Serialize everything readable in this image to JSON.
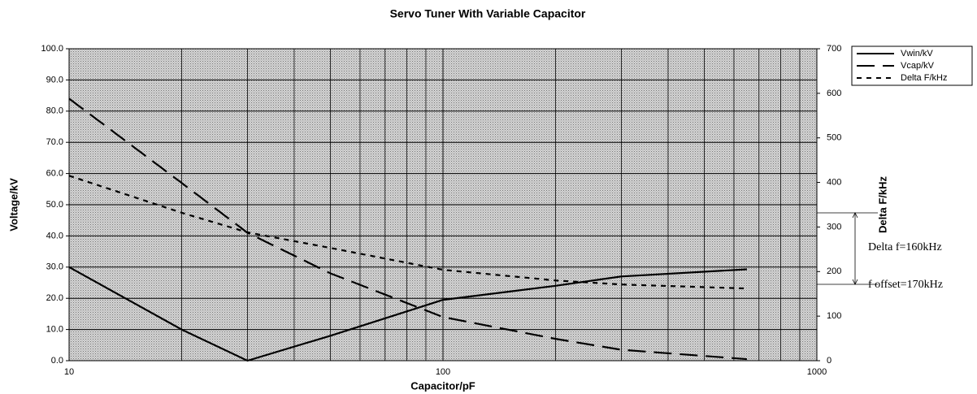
{
  "chart_data": {
    "type": "line",
    "title": "Servo Tuner With Variable Capacitor",
    "xlabel": "Capacitor/pF",
    "ylabel": "Voltage/kV",
    "y2label": "Delta F/kHz",
    "xscale": "log",
    "xlim": [
      10,
      1000
    ],
    "xticks": [
      10,
      100,
      1000
    ],
    "ylim": [
      0,
      100
    ],
    "yticks": [
      {
        "value": 0,
        "label": "0.0"
      },
      {
        "value": 10,
        "label": "10.0"
      },
      {
        "value": 20,
        "label": "20.0"
      },
      {
        "value": 30,
        "label": "30.0"
      },
      {
        "value": 40,
        "label": "40.0"
      },
      {
        "value": 50,
        "label": "50.0"
      },
      {
        "value": 60,
        "label": "60.0"
      },
      {
        "value": 70,
        "label": "70.0"
      },
      {
        "value": 80,
        "label": "80.0"
      },
      {
        "value": 90,
        "label": "90.0"
      },
      {
        "value": 100,
        "label": "100.0"
      }
    ],
    "y2lim": [
      0,
      700
    ],
    "y2ticks": [
      0,
      100,
      200,
      300,
      400,
      500,
      600,
      700
    ],
    "grid": true,
    "minor_grid": true,
    "legend": "outside-top-right",
    "x": [
      10,
      20,
      30,
      50,
      100,
      200,
      300,
      650
    ],
    "series": [
      {
        "name": "Vwin/kV",
        "color": "#000000",
        "dash": "solid",
        "values": [
          30,
          10,
          0,
          8,
          19.5,
          24,
          27,
          29.3
        ]
      },
      {
        "name": "Vcap/kV",
        "color": "#000000",
        "dash": "long",
        "values": [
          84,
          57,
          41,
          28,
          14,
          7,
          3.5,
          0.5
        ]
      },
      {
        "name": "Delta F/kHz",
        "color": "#000000",
        "dash": "short",
        "axis": "y2",
        "values": [
          415,
          332,
          288,
          253,
          204,
          180,
          171,
          162
        ]
      }
    ],
    "annotations": [
      "Delta f=160kHz",
      "f offset=170kHz"
    ]
  }
}
